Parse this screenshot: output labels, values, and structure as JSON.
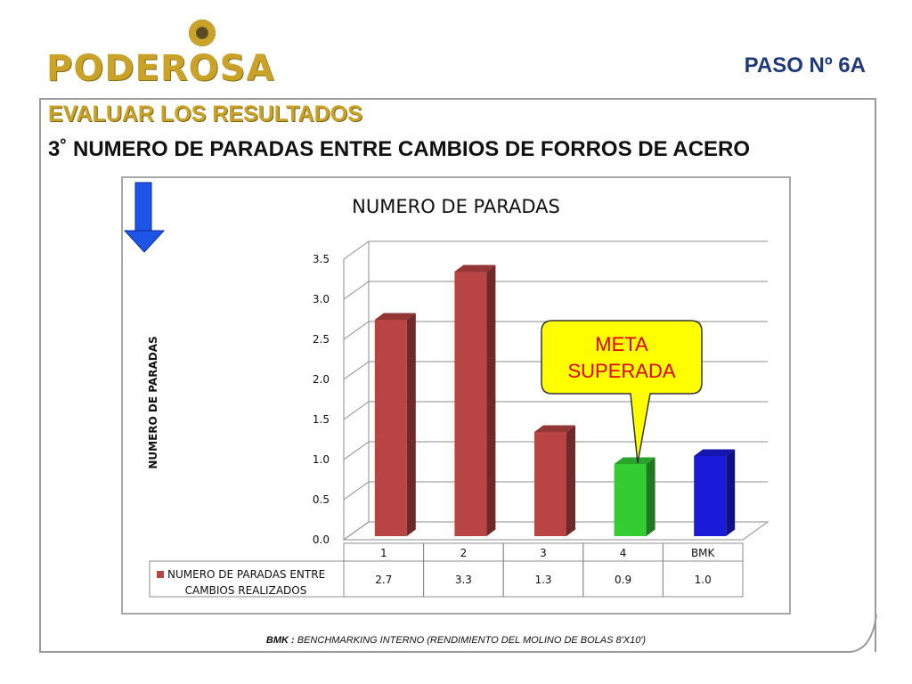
{
  "header": {
    "logo_text": "PODEROSA",
    "step_label": "PASO  Nº 6A"
  },
  "section": {
    "title": "EVALUAR LOS RESULTADOS",
    "subtitle": "3˚  NUMERO DE PARADAS ENTRE CAMBIOS DE FORROS DE ACERO"
  },
  "callout": {
    "line1": "META",
    "line2": "SUPERADA"
  },
  "footnote": {
    "prefix": "BMK :",
    "text": " BENCHMARKING INTERNO (RENDIMIENTO DEL MOLINO DE BOLAS 8'X10')"
  },
  "colors": {
    "bar_red": "#b94444",
    "bar_green": "#33cc33",
    "bar_blue": "#1a1adb",
    "arrow_blue": "#1f55e6",
    "callout_fill": "#ffff00",
    "gold": "#c9a227"
  },
  "chart_data": {
    "type": "bar",
    "title": "NUMERO DE PARADAS",
    "ylabel": "NUMERO DE PARADAS",
    "xlabel": "",
    "categories": [
      "1",
      "2",
      "3",
      "4",
      "BMK"
    ],
    "series": [
      {
        "name": "NUMERO DE PARADAS ENTRE CAMBIOS REALIZADOS",
        "values": [
          2.7,
          3.3,
          1.3,
          0.9,
          1.0
        ]
      }
    ],
    "value_labels": [
      "2.7",
      "3.3",
      "1.3",
      "0.9",
      "1.0"
    ],
    "bar_colors": [
      "#b94444",
      "#b94444",
      "#b94444",
      "#33cc33",
      "#1a1adb"
    ],
    "ylim": [
      0,
      3.5
    ],
    "yticks": [
      "0.0",
      "0.5",
      "1.0",
      "1.5",
      "2.0",
      "2.5",
      "3.0",
      "3.5"
    ],
    "grid": true,
    "legend": "data table below chart"
  }
}
